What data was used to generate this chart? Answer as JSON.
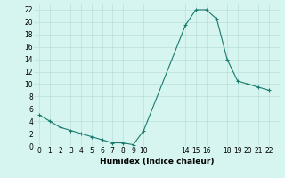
{
  "x": [
    0,
    1,
    2,
    3,
    4,
    5,
    6,
    7,
    8,
    9,
    10,
    14,
    15,
    16,
    17,
    18,
    19,
    20,
    21,
    22
  ],
  "y": [
    5,
    4,
    3,
    2.5,
    2,
    1.5,
    1,
    0.5,
    0.5,
    0.2,
    2.5,
    19.5,
    22,
    22,
    20.5,
    14,
    10.5,
    10,
    9.5,
    9
  ],
  "line_color": "#1a7a6e",
  "marker": "+",
  "marker_size": 3,
  "marker_lw": 0.8,
  "bg_color": "#d6f5f0",
  "grid_color": "#b8e0da",
  "xlabel": "Humidex (Indice chaleur)",
  "xlim": [
    -0.5,
    23
  ],
  "ylim": [
    0,
    23
  ],
  "xticks": [
    0,
    1,
    2,
    3,
    4,
    5,
    6,
    7,
    8,
    9,
    10,
    14,
    15,
    16,
    18,
    19,
    20,
    21,
    22
  ],
  "yticks": [
    0,
    2,
    4,
    6,
    8,
    10,
    12,
    14,
    16,
    18,
    20,
    22
  ],
  "tick_fontsize": 5.5,
  "xlabel_fontsize": 6.5
}
